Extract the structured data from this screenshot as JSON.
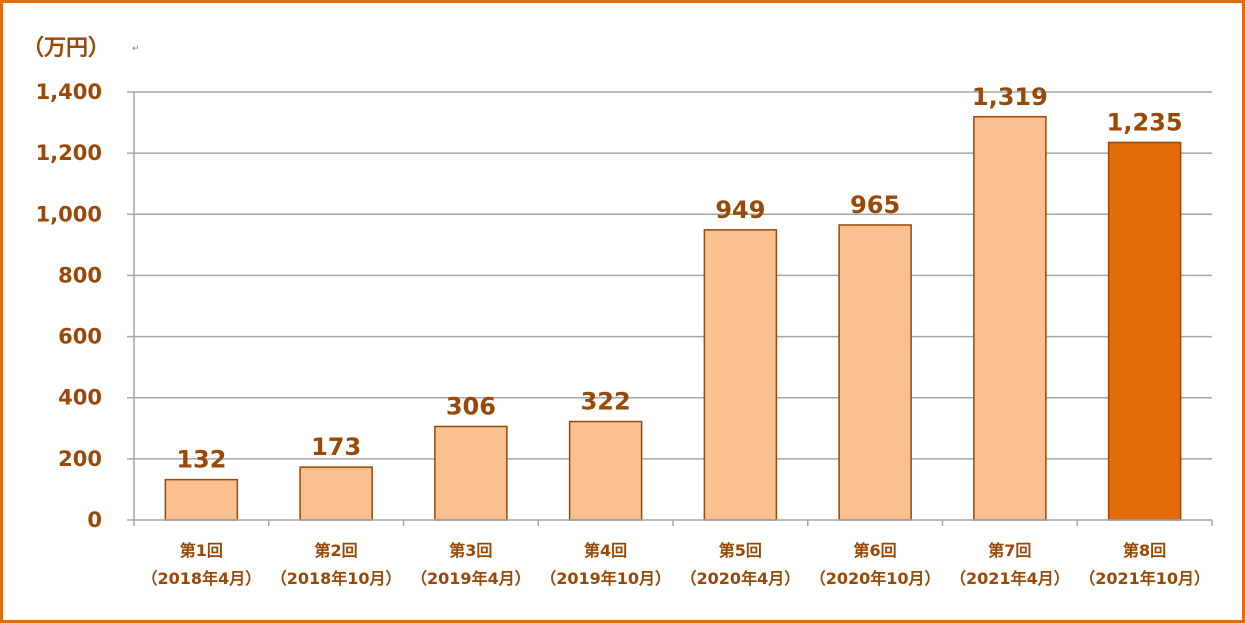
{
  "chart_data": {
    "type": "bar",
    "unit_label": "（万円）",
    "return_mark": "↵",
    "categories": [
      [
        "第1回",
        "（2018年4月）"
      ],
      [
        "第2回",
        "（2018年10月）"
      ],
      [
        "第3回",
        "（2019年4月）"
      ],
      [
        "第4回",
        "（2019年10月）"
      ],
      [
        "第5回",
        "（2020年4月）"
      ],
      [
        "第6回",
        "（2020年10月）"
      ],
      [
        "第7回",
        "（2021年4月）"
      ],
      [
        "第8回",
        "（2021年10月）"
      ]
    ],
    "values": [
      132,
      173,
      306,
      322,
      949,
      965,
      1319,
      1235
    ],
    "value_labels": [
      "132",
      "173",
      "306",
      "322",
      "949",
      "965",
      "1,319",
      "1,235"
    ],
    "yticks": [
      "0",
      "200",
      "400",
      "600",
      "800",
      "1,000",
      "1,200",
      "1,400"
    ],
    "ylim": [
      0,
      1400
    ],
    "grid": true,
    "highlight_index": 7,
    "colors": {
      "bar": "#fac090",
      "bar_highlight": "#e36c0a",
      "bar_border": "#984807",
      "text": "#984807",
      "frame": "#e36c0a",
      "grid": "#a6a6a6"
    }
  }
}
